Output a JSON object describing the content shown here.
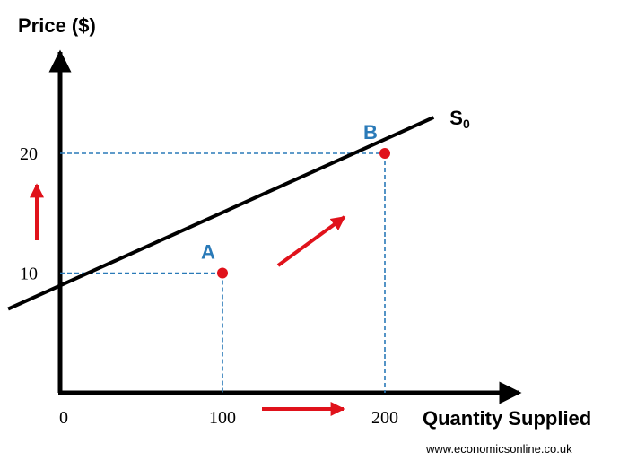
{
  "chart_data": {
    "type": "line",
    "ylabel": "Price ($)",
    "xlabel": "Quantity Supplied",
    "origin_label": "0",
    "x_ticks": [
      100,
      200
    ],
    "y_ticks": [
      10,
      20
    ],
    "xlim": [
      0,
      250
    ],
    "ylim": [
      0,
      30
    ],
    "series": [
      {
        "name": "S0",
        "label_main": "S",
        "label_sub": "0",
        "color": "#000000",
        "x": [
          -32,
          230
        ],
        "y": [
          7,
          23
        ]
      }
    ],
    "points": [
      {
        "label": "A",
        "x": 100,
        "y": 10
      },
      {
        "label": "B",
        "x": 200,
        "y": 20
      }
    ],
    "colors": {
      "point": "#e0121b",
      "label": "#2a7ab8",
      "guide": "#2a7ab8",
      "arrow": "#e0121b"
    },
    "source": "www.economicsonline.co.uk"
  }
}
